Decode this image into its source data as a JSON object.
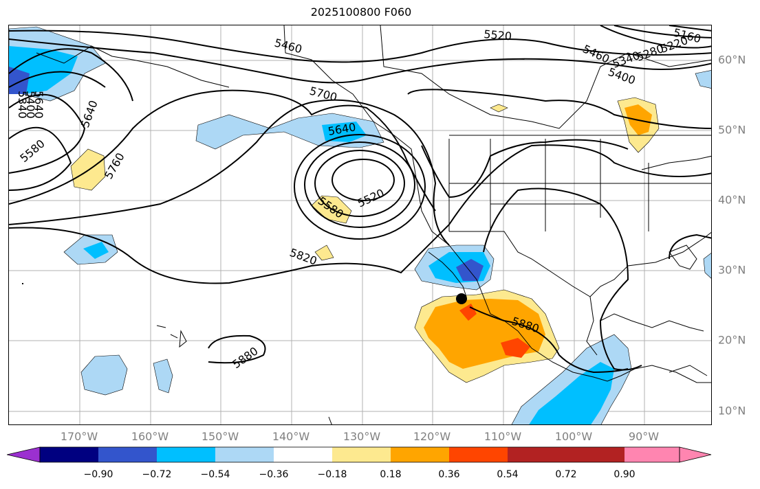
{
  "title": "2025100800 F060",
  "lon_labels": [
    "170°W",
    "160°W",
    "150°W",
    "140°W",
    "130°W",
    "120°W",
    "110°W",
    "100°W",
    "90°W"
  ],
  "lat_labels": [
    "60°N",
    "50°N",
    "40°N",
    "30°N",
    "20°N",
    "10°N"
  ],
  "colorbar": {
    "ticks": [
      "−0.90",
      "−0.72",
      "−0.54",
      "−0.36",
      "−0.18",
      "0.18",
      "0.36",
      "0.54",
      "0.72",
      "0.90"
    ],
    "colors": [
      "#9b30d0",
      "#000080",
      "#3355cc",
      "#00bfff",
      "#add8f5",
      "#ffffff",
      "#fde98f",
      "#ffa500",
      "#ff4500",
      "#b22222",
      "#ff85b0"
    ]
  },
  "contour_labels": [
    "5460",
    "5520",
    "5160",
    "5220",
    "5280",
    "5340",
    "5400",
    "5460",
    "5700",
    "5640",
    "5640",
    "5520",
    "5580",
    "5820",
    "5880",
    "5880",
    "5760",
    "5580",
    "5640",
    "5340",
    "5400",
    "5460"
  ],
  "marker": "black-dot"
}
